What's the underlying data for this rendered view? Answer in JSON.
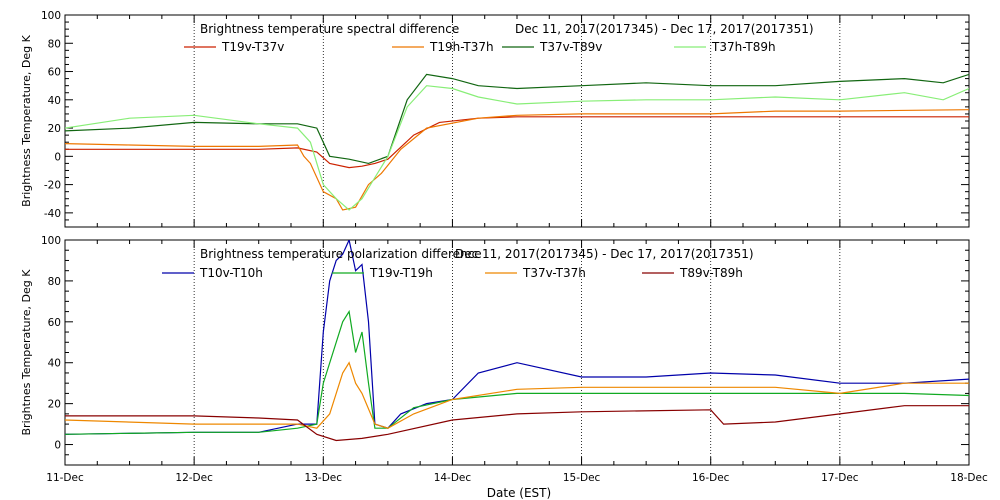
{
  "figure": {
    "xlabel": "Date (EST)",
    "xticks": [
      "11-Dec",
      "12-Dec",
      "13-Dec",
      "14-Dec",
      "15-Dec",
      "16-Dec",
      "17-Dec",
      "18-Dec"
    ]
  },
  "chart_data": [
    {
      "type": "line",
      "title": "Brightness temperature spectral difference",
      "date_range": "Dec 11, 2017(2017345) - Dec 17, 2017(2017351)",
      "ylabel": "Brightness Temperature, Deg K",
      "xlim": [
        "11-Dec",
        "18-Dec"
      ],
      "ylim": [
        -50,
        100
      ],
      "yticks": [
        -40,
        -20,
        0,
        20,
        40,
        60,
        80,
        100
      ],
      "grid": "vertical dotted at day boundaries",
      "legend": "top, single row",
      "series": [
        {
          "name": "T19v-T37v",
          "color": "#cc2200",
          "x": [
            0,
            0.5,
            1.0,
            1.5,
            1.8,
            1.95,
            2.05,
            2.2,
            2.3,
            2.4,
            2.5,
            2.7,
            2.9,
            3.2,
            3.5,
            4.0,
            5.0,
            6.0,
            7.0
          ],
          "y": [
            5,
            5,
            5,
            5,
            6,
            3,
            -5,
            -8,
            -7,
            -5,
            -2,
            15,
            24,
            27,
            28,
            28,
            28,
            28,
            28
          ]
        },
        {
          "name": "T19h-T37h",
          "color": "#ee7700",
          "x": [
            0,
            0.5,
            1.0,
            1.5,
            1.8,
            1.85,
            1.9,
            2.0,
            2.1,
            2.15,
            2.25,
            2.35,
            2.45,
            2.6,
            2.8,
            3.2,
            3.5,
            4.0,
            5.0,
            5.5,
            6.0,
            7.0
          ],
          "y": [
            9,
            8,
            7,
            7,
            8,
            0,
            -5,
            -25,
            -30,
            -38,
            -36,
            -20,
            -12,
            5,
            20,
            27,
            29,
            30,
            30,
            32,
            32,
            33
          ]
        },
        {
          "name": "T37v-T89v",
          "color": "#116611",
          "x": [
            0,
            0.5,
            1.0,
            1.5,
            1.8,
            1.95,
            2.05,
            2.2,
            2.35,
            2.5,
            2.65,
            2.8,
            3.0,
            3.2,
            3.5,
            4.0,
            4.5,
            5.0,
            5.5,
            6.0,
            6.5,
            6.8,
            7.0
          ],
          "y": [
            18,
            20,
            24,
            23,
            23,
            20,
            0,
            -2,
            -5,
            0,
            40,
            58,
            55,
            50,
            48,
            50,
            52,
            50,
            50,
            53,
            55,
            52,
            58
          ]
        },
        {
          "name": "T37h-T89h",
          "color": "#88ee77",
          "x": [
            0,
            0.5,
            1.0,
            1.5,
            1.8,
            1.9,
            2.0,
            2.1,
            2.2,
            2.3,
            2.4,
            2.5,
            2.65,
            2.8,
            3.0,
            3.2,
            3.5,
            4.0,
            4.5,
            5.0,
            5.5,
            6.0,
            6.5,
            6.8,
            7.0
          ],
          "y": [
            20,
            27,
            29,
            23,
            20,
            10,
            -20,
            -30,
            -38,
            -30,
            -15,
            0,
            35,
            50,
            48,
            42,
            37,
            39,
            40,
            40,
            42,
            40,
            45,
            40,
            48
          ]
        }
      ]
    },
    {
      "type": "line",
      "title": "Brightness temperature polarization difference",
      "date_range": "Dec 11, 2017(2017345) - Dec 17, 2017(2017351)",
      "ylabel": "Brightnes Temperature, Deg K",
      "xlim": [
        "11-Dec",
        "18-Dec"
      ],
      "ylim": [
        -10,
        100
      ],
      "yticks": [
        0,
        20,
        40,
        60,
        80,
        100
      ],
      "grid": "vertical dotted at day boundaries",
      "legend": "top, single row",
      "series": [
        {
          "name": "T10v-T10h",
          "color": "#0000aa",
          "x": [
            0,
            1.0,
            1.5,
            1.8,
            1.95,
            2.0,
            2.05,
            2.1,
            2.15,
            2.2,
            2.25,
            2.3,
            2.35,
            2.4,
            2.5,
            2.6,
            2.8,
            3.0,
            3.2,
            3.5,
            4.0,
            4.5,
            5.0,
            5.5,
            6.0,
            6.5,
            7.0
          ],
          "y": [
            5,
            6,
            6,
            10,
            10,
            55,
            80,
            90,
            93,
            100,
            85,
            88,
            60,
            10,
            8,
            15,
            20,
            22,
            35,
            40,
            33,
            33,
            35,
            34,
            30,
            30,
            32
          ]
        },
        {
          "name": "T19v-T19h",
          "color": "#11aa22",
          "x": [
            0,
            1.0,
            1.5,
            1.8,
            1.95,
            2.0,
            2.1,
            2.15,
            2.2,
            2.25,
            2.3,
            2.35,
            2.4,
            2.5,
            2.7,
            3.0,
            3.5,
            4.0,
            5.0,
            6.0,
            6.5,
            7.0
          ],
          "y": [
            5,
            6,
            6,
            8,
            10,
            30,
            50,
            60,
            65,
            45,
            55,
            30,
            8,
            8,
            18,
            22,
            25,
            25,
            25,
            25,
            25,
            24
          ]
        },
        {
          "name": "T37v-T37h",
          "color": "#ee8800",
          "x": [
            0,
            1.0,
            1.5,
            1.8,
            1.95,
            2.05,
            2.1,
            2.15,
            2.2,
            2.25,
            2.3,
            2.4,
            2.5,
            2.7,
            3.0,
            3.5,
            4.0,
            5.0,
            5.5,
            6.0,
            6.5,
            7.0
          ],
          "y": [
            12,
            10,
            10,
            10,
            8,
            15,
            25,
            35,
            40,
            30,
            25,
            10,
            8,
            15,
            22,
            27,
            28,
            28,
            28,
            25,
            30,
            30
          ]
        },
        {
          "name": "T89v-T89h",
          "color": "#880000",
          "x": [
            0,
            1.0,
            1.5,
            1.8,
            1.95,
            2.1,
            2.3,
            2.5,
            3.0,
            3.5,
            4.0,
            5.0,
            5.1,
            5.5,
            6.0,
            6.5,
            7.0
          ],
          "y": [
            14,
            14,
            13,
            12,
            5,
            2,
            3,
            5,
            12,
            15,
            16,
            17,
            10,
            11,
            15,
            19,
            19
          ]
        }
      ]
    }
  ]
}
